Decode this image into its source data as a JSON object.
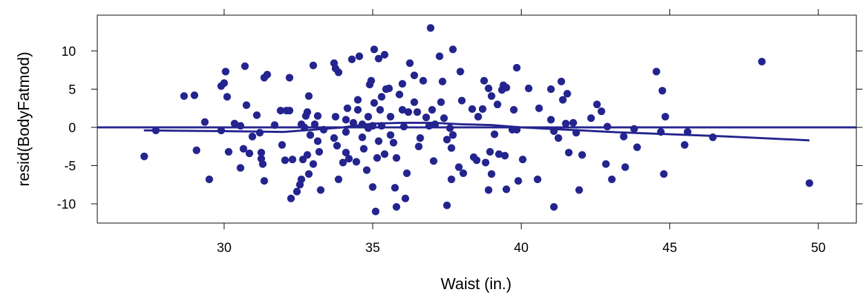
{
  "chart_data": {
    "type": "scatter",
    "xlabel": "Waist (in.)",
    "ylabel": "resid(BodyFatmod)",
    "xlim": [
      25.73,
      51.28
    ],
    "ylim": [
      -12.52,
      14.68
    ],
    "xticks": [
      30,
      35,
      40,
      45,
      50
    ],
    "yticks": [
      -10,
      -5,
      0,
      5,
      10
    ],
    "color": "#24248f",
    "reference_line": 0,
    "points": {
      "x": [
        27.31,
        27.7,
        28.65,
        29.0,
        29.35,
        29.07,
        29.5,
        29.9,
        30.0,
        30.05,
        29.9,
        30.1,
        30.15,
        30.35,
        30.55,
        30.55,
        30.7,
        30.65,
        30.75,
        30.85,
        30.95,
        31.1,
        31.2,
        31.25,
        31.25,
        31.3,
        31.35,
        31.45,
        31.35,
        31.7,
        31.95,
        31.9,
        32.1,
        32.2,
        32.05,
        32.2,
        32.25,
        32.3,
        32.45,
        32.55,
        32.6,
        32.6,
        32.7,
        32.65,
        32.75,
        32.8,
        32.85,
        32.9,
        32.8,
        32.85,
        33.0,
        33.0,
        33.05,
        33.15,
        33.15,
        33.2,
        33.25,
        33.35,
        33.7,
        33.7,
        33.75,
        33.85,
        33.75,
        33.8,
        33.85,
        34.0,
        34.1,
        34.15,
        34.1,
        34.1,
        34.2,
        34.3,
        34.5,
        34.5,
        34.35,
        34.45,
        34.55,
        34.65,
        34.65,
        34.7,
        34.8,
        34.85,
        34.85,
        34.9,
        34.95,
        35.0,
        35.0,
        35.05,
        35.05,
        35.1,
        35.15,
        35.2,
        35.2,
        35.25,
        35.3,
        35.3,
        35.4,
        35.4,
        35.45,
        35.55,
        35.6,
        35.6,
        35.7,
        35.75,
        35.8,
        35.8,
        35.9,
        36.0,
        36.0,
        36.05,
        36.1,
        36.15,
        36.2,
        36.25,
        36.4,
        36.4,
        36.5,
        36.55,
        36.6,
        36.7,
        36.8,
        36.9,
        36.95,
        37.0,
        37.05,
        37.1,
        37.25,
        37.3,
        37.35,
        37.4,
        37.5,
        37.5,
        37.6,
        37.65,
        37.65,
        37.7,
        37.7,
        37.95,
        37.9,
        38.0,
        38.05,
        38.35,
        38.4,
        38.55,
        38.5,
        38.7,
        38.75,
        38.8,
        38.9,
        38.95,
        38.9,
        39.0,
        39.0,
        39.1,
        39.2,
        39.25,
        39.35,
        39.4,
        39.45,
        39.5,
        39.5,
        39.7,
        39.75,
        39.85,
        39.85,
        39.9,
        40.05,
        40.25,
        40.55,
        40.6,
        41.0,
        41.0,
        41.1,
        41.1,
        41.25,
        41.35,
        41.4,
        41.5,
        41.55,
        41.6,
        41.75,
        41.85,
        41.95,
        42.05,
        42.35,
        42.55,
        42.7,
        42.9,
        43.05,
        42.85,
        43.45,
        43.5,
        43.8,
        43.9,
        44.55,
        44.7,
        44.75,
        44.8,
        44.85,
        45.5,
        45.6,
        46.45,
        48.1,
        49.7
      ],
      "y": [
        -3.8,
        -0.4,
        4.1,
        4.2,
        0.7,
        -3.0,
        -6.8,
        5.4,
        5.8,
        7.3,
        -0.4,
        4.0,
        -3.2,
        0.5,
        0.2,
        -5.3,
        8.0,
        -2.8,
        2.9,
        -3.4,
        -1.2,
        1.6,
        -0.7,
        -3.3,
        -4.1,
        -4.8,
        6.5,
        6.9,
        -7.0,
        0.3,
        -2.3,
        2.2,
        2.2,
        2.2,
        -4.3,
        6.5,
        -9.3,
        -4.2,
        -8.4,
        -7.5,
        -6.8,
        0.4,
        0.0,
        -4.2,
        1.5,
        2.0,
        4.1,
        -1.0,
        -3.6,
        -6.1,
        -4.8,
        8.1,
        0.4,
        1.5,
        -1.8,
        -3.2,
        -8.2,
        -0.3,
        -1.4,
        8.4,
        7.7,
        7.2,
        1.4,
        -2.4,
        -6.8,
        -4.6,
        1.0,
        2.5,
        -0.6,
        -3.3,
        -4.1,
        8.9,
        3.6,
        2.3,
        0.6,
        -4.5,
        9.3,
        0.4,
        -1.3,
        -2.8,
        -5.6,
        1.4,
        -0.1,
        5.6,
        6.1,
        0.2,
        -7.8,
        10.2,
        3.2,
        -11.0,
        -4.0,
        -1.8,
        9.0,
        2.3,
        4.0,
        0.2,
        -3.5,
        9.5,
        5.0,
        5.1,
        1.4,
        -1.0,
        -2.0,
        -7.9,
        -10.4,
        -4.0,
        4.3,
        5.7,
        2.3,
        0.1,
        -9.3,
        -6.0,
        2.0,
        8.4,
        6.8,
        3.3,
        2.0,
        -2.5,
        -1.4,
        6.1,
        1.3,
        0.2,
        13.0,
        2.3,
        -4.4,
        0.4,
        9.3,
        3.3,
        6.0,
        1.2,
        -1.6,
        -10.2,
        -0.1,
        -2.7,
        -6.8,
        10.2,
        -1.0,
        7.3,
        -5.2,
        3.5,
        -6.0,
        2.4,
        -3.9,
        1.4,
        -4.3,
        2.4,
        6.1,
        -4.6,
        5.1,
        -3.2,
        -8.2,
        -6.1,
        4.1,
        -0.9,
        3.0,
        -3.5,
        4.9,
        5.5,
        -3.7,
        -8.1,
        5.2,
        -0.3,
        2.3,
        7.8,
        -0.3,
        -7.0,
        -4.2,
        5.1,
        -6.8,
        2.5,
        5.0,
        1.0,
        -0.5,
        -10.4,
        -1.4,
        6.0,
        3.6,
        0.5,
        4.4,
        -3.3,
        0.6,
        -0.7,
        -8.2,
        -3.6,
        1.2,
        3.0,
        2.1,
        0.1,
        -6.8,
        -4.8,
        -1.2,
        -5.2,
        -0.2,
        -2.6,
        7.3,
        -0.6,
        4.8,
        -6.1,
        1.4,
        -2.3,
        -0.6,
        -1.3,
        8.6,
        -7.3
      ]
    },
    "smooth": {
      "x": [
        27.3,
        30,
        32,
        33,
        34,
        35,
        36,
        37,
        38,
        39,
        40,
        41,
        42,
        43,
        45,
        47,
        49.7
      ],
      "y": [
        -0.4,
        -0.5,
        -0.6,
        -0.3,
        0.0,
        0.5,
        0.6,
        0.6,
        0.4,
        0.3,
        0.0,
        -0.2,
        -0.4,
        -0.6,
        -0.9,
        -1.2,
        -1.7
      ]
    }
  }
}
